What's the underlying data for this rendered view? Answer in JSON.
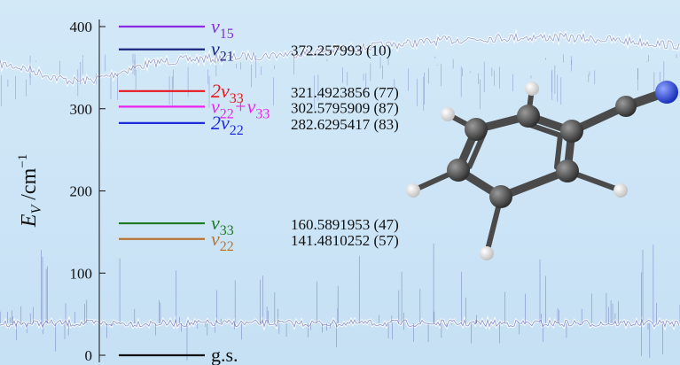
{
  "chart_data": {
    "type": "energy-level-diagram",
    "ylabel": {
      "symbol": "E",
      "subscript": "V",
      "unit": " /cm",
      "exponent": "−1"
    },
    "ylim": [
      0,
      400
    ],
    "yticks": [
      0,
      100,
      200,
      300,
      400
    ],
    "grid": false,
    "levels": [
      {
        "name": "ν15",
        "main": "ν",
        "sub": "15",
        "energy": 400,
        "value_text": "",
        "color": "#8a2be2"
      },
      {
        "name": "ν21",
        "main": "ν",
        "sub": "21",
        "energy": 372.257993,
        "value_text": "372.257993 (10)",
        "color": "#1a237e"
      },
      {
        "name": "2ν33",
        "main": "2ν",
        "sub": "33",
        "energy": 321.4923856,
        "value_text": "321.4923856 (77)",
        "color": "#e8171d"
      },
      {
        "name": "ν22+ν33",
        "main": "ν",
        "sub": "22",
        "main2": "+ν",
        "sub2": "33",
        "energy": 302.5795909,
        "value_text": "302.5795909 (87)",
        "color": "#ee22ee"
      },
      {
        "name": "2ν22",
        "main": "2ν",
        "sub": "22",
        "energy": 282.6295417,
        "value_text": "282.6295417 (83)",
        "color": "#1f2ad8"
      },
      {
        "name": "ν33",
        "main": "ν",
        "sub": "33",
        "energy": 160.5891953,
        "value_text": "160.5891953 (47)",
        "color": "#1e7a22"
      },
      {
        "name": "ν22",
        "main": "ν",
        "sub": "22",
        "energy": 141.4810252,
        "value_text": "141.4810252 (57)",
        "color": "#b87333"
      },
      {
        "name": "g.s.",
        "main": "g.s.",
        "sub": "",
        "energy": 0,
        "value_text": "",
        "color": "#111111"
      }
    ],
    "background_spectra": true,
    "molecule": "benzonitrile",
    "molecule_colors": {
      "carbon": "#3a3a3a",
      "hydrogen": "#f2f2f2",
      "nitrogen": "#1f3fd6"
    }
  }
}
